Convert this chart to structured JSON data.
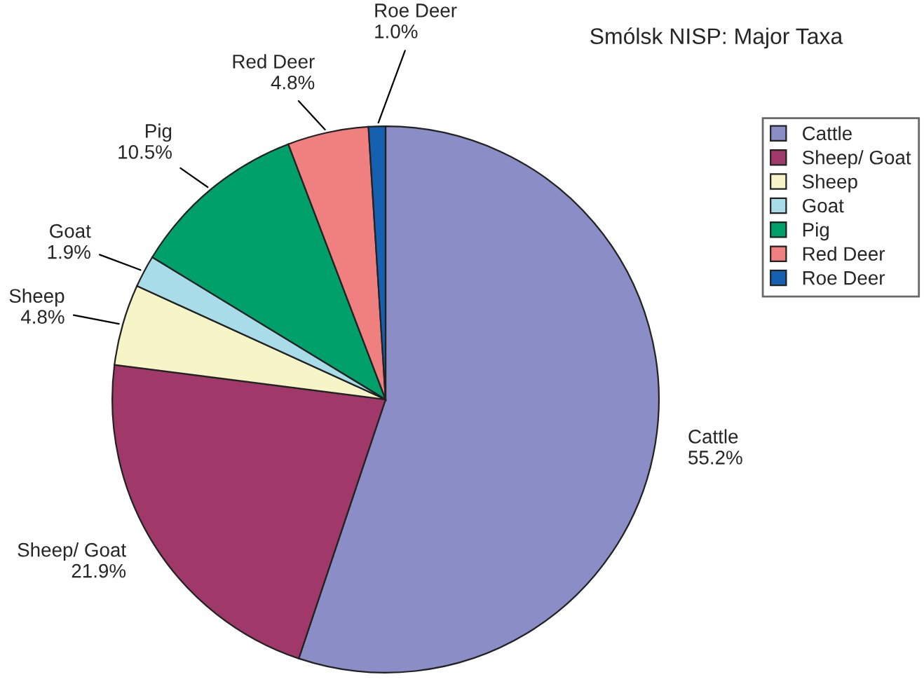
{
  "chart_data": {
    "type": "pie",
    "title": "Smólsk NISP: Major Taxa",
    "categories": [
      "Cattle",
      "Sheep/ Goat",
      "Sheep",
      "Goat",
      "Pig",
      "Red Deer",
      "Roe Deer"
    ],
    "values": [
      55.2,
      21.9,
      4.8,
      1.9,
      10.5,
      4.8,
      1.0
    ],
    "value_labels": [
      "55.2%",
      "21.9%",
      "4.8%",
      "1.9%",
      "10.5%",
      "4.8%",
      "1.0%"
    ],
    "colors": [
      "#8b8ec6",
      "#a0396a",
      "#f5f5c8",
      "#a8dce8",
      "#00a06a",
      "#f08080",
      "#1560b0"
    ],
    "legend": "right"
  }
}
